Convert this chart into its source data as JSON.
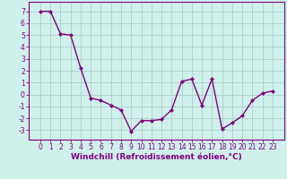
{
  "x": [
    0,
    1,
    2,
    3,
    4,
    5,
    6,
    7,
    8,
    9,
    10,
    11,
    12,
    13,
    14,
    15,
    16,
    17,
    18,
    19,
    20,
    21,
    22,
    23
  ],
  "y": [
    7.0,
    7.0,
    5.1,
    5.0,
    2.2,
    -0.3,
    -0.5,
    -0.9,
    -1.3,
    -3.1,
    -2.2,
    -2.2,
    -2.1,
    -1.3,
    1.1,
    1.3,
    -0.9,
    1.3,
    -2.9,
    -2.4,
    -1.8,
    -0.5,
    0.1,
    0.3
  ],
  "line_color": "#800080",
  "marker": "D",
  "marker_size": 2.0,
  "background_color": "#cff0eb",
  "grid_color": "#aacfca",
  "xlabel": "Windchill (Refroidissement éolien,°C)",
  "xlabel_fontsize": 6.5,
  "ylim": [
    -3.8,
    7.8
  ],
  "yticks": [
    -3,
    -2,
    -1,
    0,
    1,
    2,
    3,
    4,
    5,
    6,
    7
  ],
  "xticks": [
    0,
    1,
    2,
    3,
    4,
    5,
    6,
    7,
    8,
    9,
    10,
    11,
    12,
    13,
    14,
    15,
    16,
    17,
    18,
    19,
    20,
    21,
    22,
    23
  ],
  "tick_fontsize": 5.5,
  "line_width": 1.0
}
